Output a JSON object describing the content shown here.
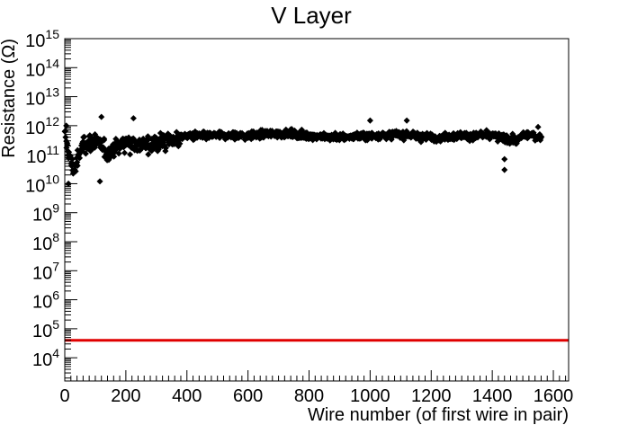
{
  "chart_data": {
    "type": "scatter",
    "title": "V Layer",
    "xlabel": "Wire number (of first wire in pair)",
    "ylabel": "Resistance (Ω)",
    "xlim": [
      0,
      1650
    ],
    "ylim_log10": [
      3.2,
      15
    ],
    "yscale": "log",
    "x_ticks": [
      0,
      200,
      400,
      600,
      800,
      1000,
      1200,
      1400,
      1600
    ],
    "y_tick_exponents": [
      4,
      5,
      6,
      7,
      8,
      9,
      10,
      11,
      12,
      13,
      14,
      15
    ],
    "y_tick_base": "10",
    "grid": false,
    "marker_color": "#000000",
    "threshold_line": {
      "y": 40000,
      "color": "#e00000"
    },
    "series": [
      {
        "profile": [
          {
            "x": 0,
            "y": 400000000000
          },
          {
            "x": 10,
            "y": 150000000000
          },
          {
            "x": 20,
            "y": 50000000000
          },
          {
            "x": 30,
            "y": 30000000000
          },
          {
            "x": 60,
            "y": 250000000000
          },
          {
            "x": 100,
            "y": 300000000000
          },
          {
            "x": 140,
            "y": 120000000000
          },
          {
            "x": 200,
            "y": 300000000000
          },
          {
            "x": 260,
            "y": 200000000000
          },
          {
            "x": 300,
            "y": 250000000000
          },
          {
            "x": 340,
            "y": 300000000000
          },
          {
            "x": 400,
            "y": 450000000000
          },
          {
            "x": 500,
            "y": 450000000000
          },
          {
            "x": 600,
            "y": 450000000000
          },
          {
            "x": 700,
            "y": 550000000000
          },
          {
            "x": 800,
            "y": 450000000000
          },
          {
            "x": 900,
            "y": 400000000000
          },
          {
            "x": 1000,
            "y": 450000000000
          },
          {
            "x": 1100,
            "y": 500000000000
          },
          {
            "x": 1200,
            "y": 400000000000
          },
          {
            "x": 1300,
            "y": 450000000000
          },
          {
            "x": 1400,
            "y": 450000000000
          },
          {
            "x": 1480,
            "y": 300000000000
          },
          {
            "x": 1500,
            "y": 500000000000
          },
          {
            "x": 1560,
            "y": 400000000000
          }
        ],
        "outliers": [
          {
            "x": 120,
            "y": 2000000000000
          },
          {
            "x": 225,
            "y": 1800000000000
          },
          {
            "x": 1120,
            "y": 1500000000000
          },
          {
            "x": 1000,
            "y": 1500000000000
          },
          {
            "x": 1440,
            "y": 30000000000
          },
          {
            "x": 1440,
            "y": 70000000000
          },
          {
            "x": 12,
            "y": 10000000000
          },
          {
            "x": 115,
            "y": 12000000000
          },
          {
            "x": 5,
            "y": 1000000000000
          },
          {
            "x": 1550,
            "y": 900000000000
          }
        ],
        "x_range": [
          0,
          1560
        ]
      }
    ]
  }
}
